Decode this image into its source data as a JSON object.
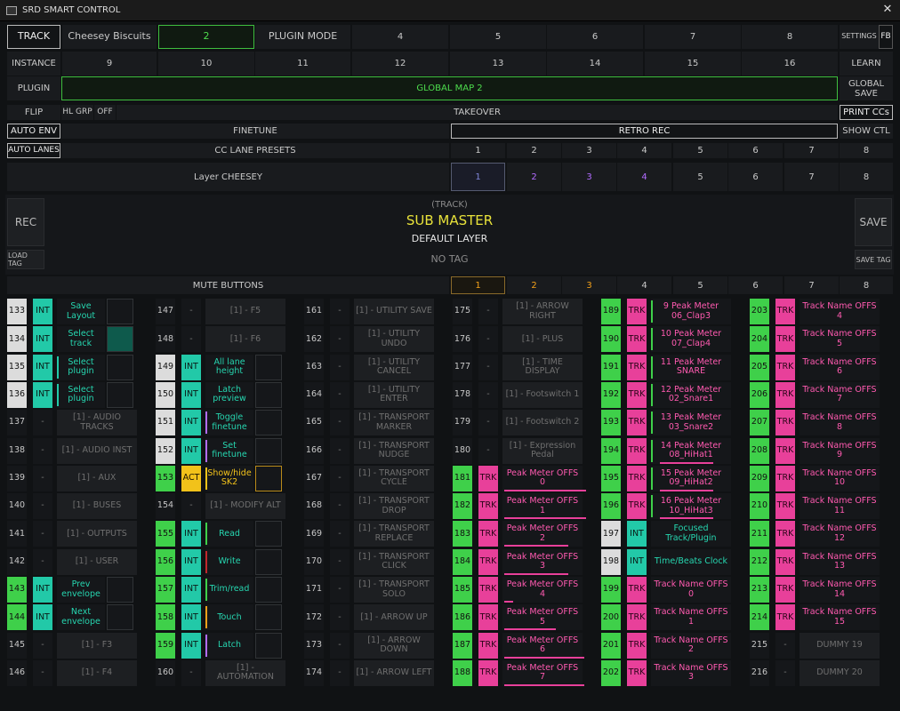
{
  "window": {
    "title": "SRD SMART CONTROL",
    "close": "✕"
  },
  "row1": [
    "TRACK",
    "Cheesey Biscuits",
    "2",
    "PLUGIN MODE",
    "4",
    "5",
    "6",
    "7",
    "8",
    "SETTINGS",
    "FB"
  ],
  "row2": [
    "INSTANCE",
    "9",
    "10",
    "11",
    "12",
    "13",
    "14",
    "15",
    "16",
    "LEARN"
  ],
  "row3": {
    "plugin": "PLUGIN",
    "map": "GLOBAL MAP 2",
    "global_save": "GLOBAL SAVE"
  },
  "row4": {
    "flip": "FLIP",
    "hl_grp": "HL GRP",
    "off": "OFF",
    "takeover": "TAKEOVER",
    "print": "PRINT CCs"
  },
  "row5": {
    "auto_env": "AUTO ENV",
    "finetune": "FINETUNE",
    "retro_rec": "RETRO REC",
    "show_ctl": "SHOW CTL"
  },
  "row6": {
    "auto_lanes": "AUTO LANES",
    "cc_presets": "CC LANE PRESETS",
    "nums": [
      "1",
      "2",
      "3",
      "4",
      "5",
      "6",
      "7",
      "8"
    ]
  },
  "row7": {
    "layer": "Layer CHEESEY",
    "nums": [
      "1",
      "2",
      "3",
      "4",
      "5",
      "6",
      "7",
      "8"
    ]
  },
  "big": {
    "rec": "REC",
    "load_tag": "LOAD TAG",
    "track_hint": "(TRACK)",
    "sub_master": "SUB MASTER",
    "default_layer": "DEFAULT LAYER",
    "no_tag": "NO TAG",
    "save": "SAVE",
    "save_tag": "SAVE TAG"
  },
  "mute": {
    "label": "MUTE BUTTONS",
    "nums": [
      "1",
      "2",
      "3",
      "4",
      "5",
      "6",
      "7",
      "8"
    ]
  },
  "colors": {
    "green": "#3fd04a",
    "teal": "#22c9a8",
    "pink": "#e8409a",
    "yellow": "#f2c21a",
    "purple": "#b26cff"
  },
  "grid": [
    [
      [
        "133",
        "INT",
        "Save Layout"
      ],
      [
        "147",
        "-",
        "[1] - F5"
      ],
      [
        "161",
        "-",
        "[1] - UTILITY SAVE"
      ],
      [
        "175",
        "-",
        "[1] - ARROW RIGHT"
      ],
      [
        "189",
        "TRK",
        "9 Peak Meter 06_Clap3"
      ],
      [
        "203",
        "TRK",
        "Track Name OFFS 4"
      ]
    ],
    [
      [
        "134",
        "INT",
        "Select track"
      ],
      [
        "148",
        "-",
        "[1] - F6"
      ],
      [
        "162",
        "-",
        "[1] - UTILITY UNDO"
      ],
      [
        "176",
        "-",
        "[1] - PLUS"
      ],
      [
        "190",
        "TRK",
        "10 Peak Meter 07_Clap4"
      ],
      [
        "204",
        "TRK",
        "Track Name OFFS 5"
      ]
    ],
    [
      [
        "135",
        "INT",
        "Select plugin"
      ],
      [
        "149",
        "INT",
        "All lane height"
      ],
      [
        "163",
        "-",
        "[1] - UTILITY CANCEL"
      ],
      [
        "177",
        "-",
        "[1] - TIME DISPLAY"
      ],
      [
        "191",
        "TRK",
        "11 Peak Meter SNARE"
      ],
      [
        "205",
        "TRK",
        "Track Name OFFS 6"
      ]
    ],
    [
      [
        "136",
        "INT",
        "Select plugin"
      ],
      [
        "150",
        "INT",
        "Latch preview"
      ],
      [
        "164",
        "-",
        "[1] - UTILITY ENTER"
      ],
      [
        "178",
        "-",
        "[1] - Footswitch 1"
      ],
      [
        "192",
        "TRK",
        "12 Peak Meter 02_Snare1"
      ],
      [
        "206",
        "TRK",
        "Track Name OFFS 7"
      ]
    ],
    [
      [
        "137",
        "-",
        "[1] - AUDIO TRACKS"
      ],
      [
        "151",
        "INT",
        "Toggle finetune"
      ],
      [
        "165",
        "-",
        "[1] - TRANSPORT MARKER"
      ],
      [
        "179",
        "-",
        "[1] - Footswitch 2"
      ],
      [
        "193",
        "TRK",
        "13 Peak Meter 03_Snare2"
      ],
      [
        "207",
        "TRK",
        "Track Name OFFS 8"
      ]
    ],
    [
      [
        "138",
        "-",
        "[1] - AUDIO INST"
      ],
      [
        "152",
        "INT",
        "Set finetune"
      ],
      [
        "166",
        "-",
        "[1] - TRANSPORT NUDGE"
      ],
      [
        "180",
        "-",
        "[1] - Expression Pedal"
      ],
      [
        "194",
        "TRK",
        "14 Peak Meter 08_HiHat1"
      ],
      [
        "208",
        "TRK",
        "Track Name OFFS 9"
      ]
    ],
    [
      [
        "139",
        "-",
        "[1] - AUX"
      ],
      [
        "153",
        "ACT",
        "Show/hide SK2"
      ],
      [
        "167",
        "-",
        "[1] - TRANSPORT CYCLE"
      ],
      [
        "181",
        "TRK",
        "Peak Meter OFFS 0"
      ],
      [
        "195",
        "TRK",
        "15 Peak Meter 09_HiHat2"
      ],
      [
        "209",
        "TRK",
        "Track Name OFFS 10"
      ]
    ],
    [
      [
        "140",
        "-",
        "[1] - BUSES"
      ],
      [
        "154",
        "-",
        "[1] - MODIFY ALT"
      ],
      [
        "168",
        "-",
        "[1] - TRANSPORT DROP"
      ],
      [
        "182",
        "TRK",
        "Peak Meter OFFS 1"
      ],
      [
        "196",
        "TRK",
        "16 Peak Meter 10_HiHat3"
      ],
      [
        "210",
        "TRK",
        "Track Name OFFS 11"
      ]
    ],
    [
      [
        "141",
        "-",
        "[1] - OUTPUTS"
      ],
      [
        "155",
        "INT",
        "Read"
      ],
      [
        "169",
        "-",
        "[1] - TRANSPORT REPLACE"
      ],
      [
        "183",
        "TRK",
        "Peak Meter OFFS 2"
      ],
      [
        "197",
        "INT",
        "Focused Track/Plugin"
      ],
      [
        "211",
        "TRK",
        "Track Name OFFS 12"
      ]
    ],
    [
      [
        "142",
        "-",
        "[1] - USER"
      ],
      [
        "156",
        "INT",
        "Write"
      ],
      [
        "170",
        "-",
        "[1] - TRANSPORT CLICK"
      ],
      [
        "184",
        "TRK",
        "Peak Meter OFFS 3"
      ],
      [
        "198",
        "INT",
        "Time/Beats Clock"
      ],
      [
        "212",
        "TRK",
        "Track Name OFFS 13"
      ]
    ],
    [
      [
        "143",
        "INT",
        "Prev envelope"
      ],
      [
        "157",
        "INT",
        "Trim/read"
      ],
      [
        "171",
        "-",
        "[1] - TRANSPORT SOLO"
      ],
      [
        "185",
        "TRK",
        "Peak Meter OFFS 4"
      ],
      [
        "199",
        "TRK",
        "Track Name OFFS 0"
      ],
      [
        "213",
        "TRK",
        "Track Name OFFS 14"
      ]
    ],
    [
      [
        "144",
        "INT",
        "Next envelope"
      ],
      [
        "158",
        "INT",
        "Touch"
      ],
      [
        "172",
        "-",
        "[1] - ARROW UP"
      ],
      [
        "186",
        "TRK",
        "Peak Meter OFFS 5"
      ],
      [
        "200",
        "TRK",
        "Track Name OFFS 1"
      ],
      [
        "214",
        "TRK",
        "Track Name OFFS 15"
      ]
    ],
    [
      [
        "145",
        "-",
        "[1] - F3"
      ],
      [
        "159",
        "INT",
        "Latch"
      ],
      [
        "173",
        "-",
        "[1] - ARROW DOWN"
      ],
      [
        "187",
        "TRK",
        "Peak Meter OFFS 6"
      ],
      [
        "201",
        "TRK",
        "Track Name OFFS 2"
      ],
      [
        "215",
        "-",
        "DUMMY 19"
      ]
    ],
    [
      [
        "146",
        "-",
        "[1] - F4"
      ],
      [
        "160",
        "-",
        "[1] - AUTOMATION"
      ],
      [
        "174",
        "-",
        "[1] - ARROW LEFT"
      ],
      [
        "188",
        "TRK",
        "Peak Meter OFFS 7"
      ],
      [
        "202",
        "TRK",
        "Track Name OFFS 3"
      ],
      [
        "216",
        "-",
        "DUMMY 20"
      ]
    ]
  ]
}
